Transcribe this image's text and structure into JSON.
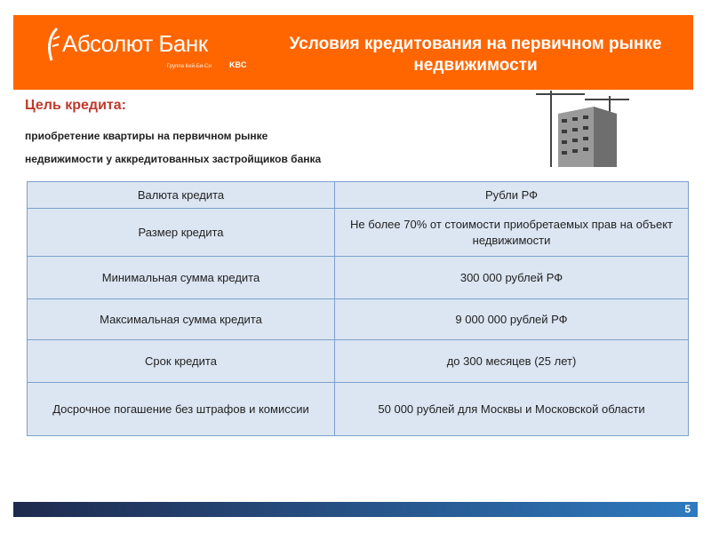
{
  "header": {
    "logo_text": "Абсолют Банк",
    "logo_sub": "Группа Кей-Би-Си",
    "logo_kbc": "KBC",
    "title": "Условия кредитования на первичном рынке недвижимости"
  },
  "goal": {
    "label": "Цель кредита:",
    "line1": "приобретение квартиры на первичном рынке",
    "line2": "недвижимости у аккредитованных застройщиков банка"
  },
  "table": {
    "rows": [
      {
        "param": "Валюта кредита",
        "value": "Рубли РФ"
      },
      {
        "param": "Размер кредита",
        "value": "Не более 70% от стоимости приобретаемых прав на объект недвижимости"
      },
      {
        "param": "Минимальная сумма кредита",
        "value": "300 000 рублей РФ"
      },
      {
        "param": "Максимальная сумма кредита",
        "value": "9 000 000 рублей РФ"
      },
      {
        "param": "Срок кредита",
        "value": "до 300 месяцев (25 лет)"
      },
      {
        "param": "Досрочное погашение без штрафов и комиссии",
        "value": "50 000 рублей  для Москвы и Московской области"
      }
    ]
  },
  "footer": {
    "page_number": "5"
  },
  "colors": {
    "brand": "#ff6600",
    "table_bg": "#dce6f2",
    "goal": "#c0392b"
  }
}
